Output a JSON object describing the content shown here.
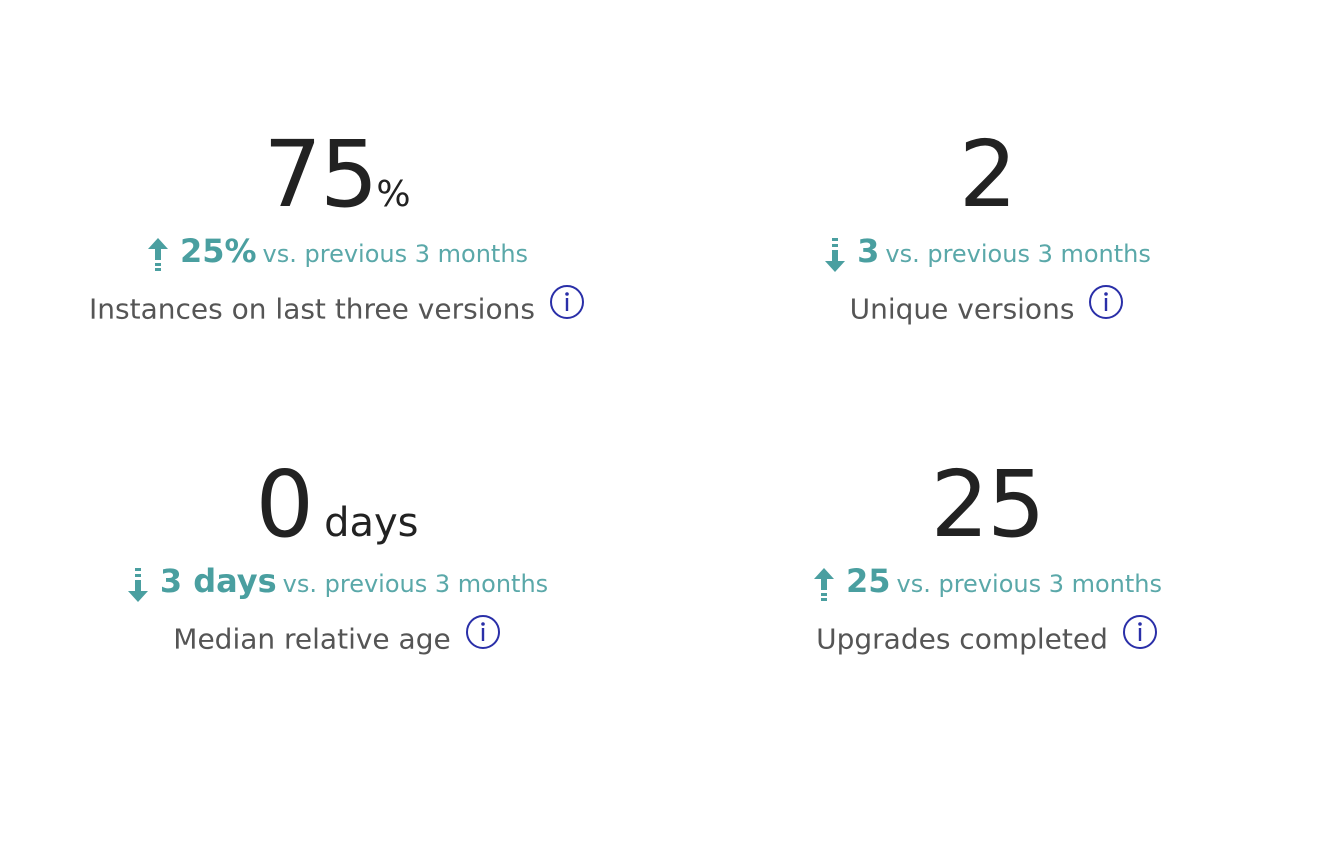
{
  "colors": {
    "accent": "#4a9fa0",
    "info": "#2a2fa8",
    "value": "#222222",
    "label": "#555555"
  },
  "metrics": [
    {
      "value": "75",
      "unit": "%",
      "trend": "up",
      "trend_icon": "arrow-up-icon",
      "delta": "25%",
      "comparison": "vs. previous 3 months",
      "label": "Instances on last three versions"
    },
    {
      "value": "2",
      "unit": "",
      "trend": "down",
      "trend_icon": "arrow-down-icon",
      "delta": "3",
      "comparison": "vs. previous 3 months",
      "label": "Unique versions"
    },
    {
      "value": "0",
      "unit": "days",
      "trend": "down",
      "trend_icon": "arrow-down-icon",
      "delta": "3 days",
      "comparison": "vs. previous 3 months",
      "label": "Median relative age"
    },
    {
      "value": "25",
      "unit": "",
      "trend": "up",
      "trend_icon": "arrow-up-icon",
      "delta": "25",
      "comparison": "vs. previous 3 months",
      "label": "Upgrades completed"
    }
  ]
}
